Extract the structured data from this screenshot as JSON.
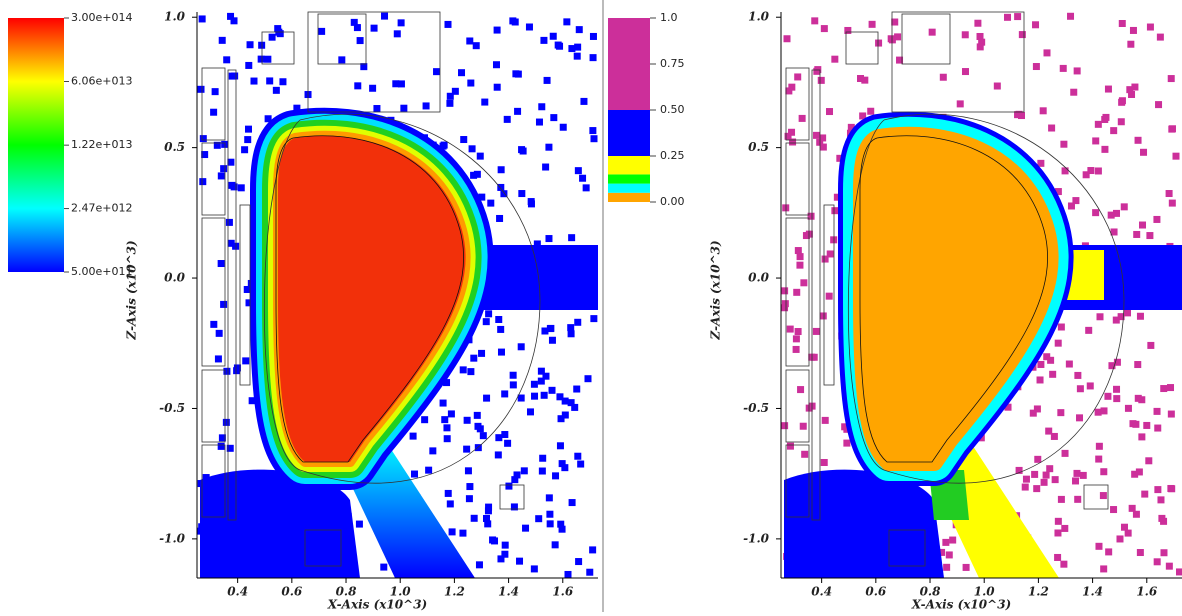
{
  "chart_data": [
    {
      "type": "heatmap",
      "xlabel": "X-Axis (x10^3)",
      "ylabel": "Z-Axis (x10^3)",
      "xlim": [
        0.25,
        1.73
      ],
      "ylim": [
        -1.15,
        1.02
      ],
      "xticks": [
        0.4,
        0.6,
        0.8,
        {
          "value": 1,
          "label": "1.0"
        },
        1.2,
        1.4,
        1.6
      ],
      "yticks": [
        {
          "value": 1,
          "label": "1.0"
        },
        0.5,
        {
          "value": 0,
          "label": "0.0"
        },
        -0.5,
        {
          "value": -1,
          "label": "-1.0"
        }
      ],
      "colorbar": {
        "scale": "log",
        "lim": [
          500000000000,
          300000000000000
        ],
        "colors": [
          "#0000ff",
          "#00ffff",
          "#00ff00",
          "#ffff00",
          "#ff0000"
        ],
        "ticks": [
          {
            "value": 300000000000000,
            "label": "3.00e+014"
          },
          {
            "value": 60600000000000,
            "label": "6.06e+013"
          },
          {
            "value": 12200000000000,
            "label": "1.22e+013"
          },
          {
            "value": 2470000000000,
            "label": "2.47e+012"
          },
          {
            "value": 500000000000,
            "label": "5.00e+011"
          }
        ]
      }
    },
    {
      "type": "heatmap",
      "xlabel": "X-Axis (x10^3)",
      "ylabel": "Z-Axis (x10^3)",
      "xlim": [
        0.25,
        1.73
      ],
      "ylim": [
        -1.15,
        1.02
      ],
      "xticks": [
        0.4,
        0.6,
        0.8,
        {
          "value": 1,
          "label": "1.0"
        },
        1.2,
        1.4,
        1.6
      ],
      "yticks": [
        {
          "value": 1,
          "label": "1.0"
        },
        0.5,
        {
          "value": 0,
          "label": "0.0"
        },
        -0.5,
        {
          "value": -1,
          "label": "-1.0"
        }
      ],
      "colorbar": {
        "scale": "linear",
        "lim": [
          0,
          1
        ],
        "bounds": [
          0,
          0.05,
          0.1,
          0.15,
          0.25,
          0.5,
          1
        ],
        "colors": [
          "#ffa500",
          "#00ffff",
          "#00ff00",
          "#ffff00",
          "#0000ff",
          "#cc2f9a"
        ],
        "ticks": [
          {
            "value": 1,
            "label": "1.0"
          },
          0.75,
          {
            "value": 0.5,
            "label": "0.50"
          },
          0.25,
          {
            "value": 0,
            "label": "0.00"
          }
        ]
      }
    }
  ]
}
